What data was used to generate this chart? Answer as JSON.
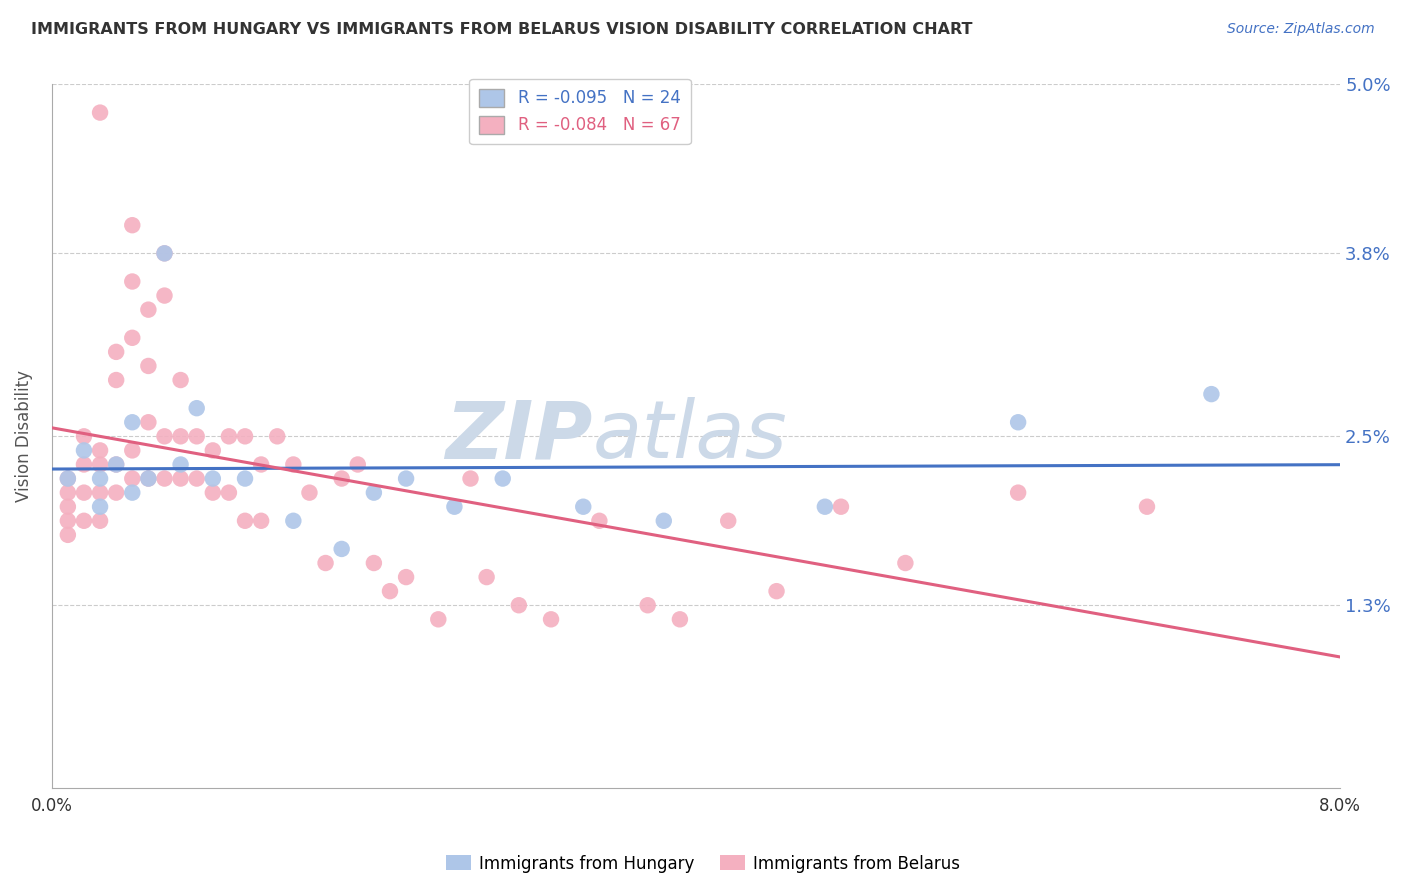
{
  "title": "IMMIGRANTS FROM HUNGARY VS IMMIGRANTS FROM BELARUS VISION DISABILITY CORRELATION CHART",
  "source": "Source: ZipAtlas.com",
  "ylabel": "Vision Disability",
  "x_min": 0.0,
  "x_max": 0.08,
  "y_min": 0.0,
  "y_max": 0.05,
  "yticks": [
    0.013,
    0.025,
    0.038,
    0.05
  ],
  "ytick_labels": [
    "1.3%",
    "2.5%",
    "3.8%",
    "5.0%"
  ],
  "xticks": [
    0.0,
    0.02,
    0.04,
    0.06,
    0.08
  ],
  "xtick_labels": [
    "0.0%",
    "",
    "",
    "",
    "8.0%"
  ],
  "series": [
    {
      "name": "Immigrants from Hungary",
      "R": -0.095,
      "N": 24,
      "color": "#aec6e8",
      "line_color": "#4472c4",
      "x": [
        0.001,
        0.002,
        0.003,
        0.003,
        0.004,
        0.005,
        0.005,
        0.006,
        0.007,
        0.008,
        0.009,
        0.01,
        0.012,
        0.015,
        0.018,
        0.02,
        0.022,
        0.025,
        0.028,
        0.033,
        0.038,
        0.048,
        0.06,
        0.072
      ],
      "y": [
        0.022,
        0.024,
        0.022,
        0.02,
        0.023,
        0.026,
        0.021,
        0.022,
        0.038,
        0.023,
        0.027,
        0.022,
        0.022,
        0.019,
        0.017,
        0.021,
        0.022,
        0.02,
        0.022,
        0.02,
        0.019,
        0.02,
        0.026,
        0.028
      ]
    },
    {
      "name": "Immigrants from Belarus",
      "R": -0.084,
      "N": 67,
      "color": "#f4b0c0",
      "line_color": "#e06080",
      "x": [
        0.001,
        0.001,
        0.001,
        0.001,
        0.001,
        0.002,
        0.002,
        0.002,
        0.002,
        0.003,
        0.003,
        0.003,
        0.003,
        0.003,
        0.004,
        0.004,
        0.004,
        0.004,
        0.005,
        0.005,
        0.005,
        0.005,
        0.005,
        0.006,
        0.006,
        0.006,
        0.006,
        0.007,
        0.007,
        0.007,
        0.007,
        0.008,
        0.008,
        0.008,
        0.009,
        0.009,
        0.01,
        0.01,
        0.011,
        0.011,
        0.012,
        0.012,
        0.013,
        0.013,
        0.014,
        0.015,
        0.016,
        0.017,
        0.018,
        0.019,
        0.02,
        0.021,
        0.022,
        0.024,
        0.026,
        0.027,
        0.029,
        0.031,
        0.034,
        0.037,
        0.039,
        0.042,
        0.045,
        0.049,
        0.053,
        0.06,
        0.068
      ],
      "y": [
        0.022,
        0.021,
        0.02,
        0.019,
        0.018,
        0.025,
        0.023,
        0.021,
        0.019,
        0.048,
        0.024,
        0.023,
        0.021,
        0.019,
        0.031,
        0.029,
        0.023,
        0.021,
        0.04,
        0.036,
        0.032,
        0.024,
        0.022,
        0.034,
        0.03,
        0.026,
        0.022,
        0.038,
        0.035,
        0.025,
        0.022,
        0.029,
        0.025,
        0.022,
        0.025,
        0.022,
        0.024,
        0.021,
        0.025,
        0.021,
        0.025,
        0.019,
        0.023,
        0.019,
        0.025,
        0.023,
        0.021,
        0.016,
        0.022,
        0.023,
        0.016,
        0.014,
        0.015,
        0.012,
        0.022,
        0.015,
        0.013,
        0.012,
        0.019,
        0.013,
        0.012,
        0.019,
        0.014,
        0.02,
        0.016,
        0.021,
        0.02
      ]
    }
  ],
  "background_color": "#ffffff",
  "grid_color": "#cccccc",
  "title_color": "#333333",
  "watermark_color": "#ccd9e8"
}
